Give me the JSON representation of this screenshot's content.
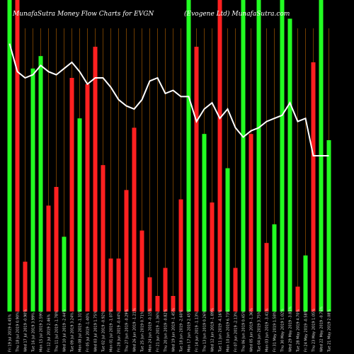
{
  "chart_data": {
    "type": "bar",
    "title_left": "MunafaSutra  Money Flow  Charts for EVGN",
    "title_right": "(Evogene   Ltd)  MunafaSutra.com",
    "colors": {
      "background": "#000000",
      "up": "#22ff22",
      "down": "#ff2020",
      "line": "#ffffff",
      "grid": "#8a4b00"
    },
    "ylim": [
      0,
      100
    ],
    "categories": [
      "Fri 19 Jul 2019 4.45%",
      "Thu 18 Jul 2019 0.90%",
      "Wed 17 Jul 2019 -0.90%",
      "Tue 16 Jul 2019 3.99%",
      "Mon 15 Jul 2019 2.59%",
      "Fri 12 Jul 2019 2.46%",
      "Thu 11 Jul 2019 -1.78%",
      "Wed 10 Jul 2019 -2.44%",
      "Tue 09 Jul 2019 3.24%",
      "Mon 08 Jul 2019 -1.31%",
      "Fri 05 Jul 2019 -1.40%",
      "Wed 03 Jul 2019 1.75%",
      "Tue 02 Jul 2019 -0.92%",
      "Mon 01 Jul 2019 -1.07%",
      "Fri 28 Jun 2019 -0.44%",
      "Thu 27 Jun 2019 -0.29%",
      "Wed 26 Jun 2019 -1.21%",
      "Tue 25 Jun 2019 0.71%",
      "Mon 24 Jun 2019 -0.15%",
      "Fri 21 Jun 2019 -1.36%",
      "Thu 20 Jun 2019 -0.82%",
      "Wed 19 Jun 2019 -1.45%",
      "Tue 18 Jun 2019 -2.60%",
      "Mon 17 Jun 2019 2.45%",
      "Fri 14 Jun 2019 -1.13%",
      "Thu 13 Jun 2019 0.26%",
      "Wed 12 Jun 2019 -1.89%",
      "Tue 11 Jun 2019 -4.16%",
      "Mon 10 Jun 2019 6.73%",
      "Fri 07 Jun 2019 -2.13%",
      "Thu 06 Jun 2019 0.45%",
      "Wed 05 Jun 2019 -1.36%",
      "Tue 04 Jun 2019 3.75%",
      "Mon 03 Jun 2019 -3.41%",
      "Fri 31 May 2019 1.58%",
      "Thu 30 May 2019 1.02%",
      "Wed 29 May 2019 -3.85%",
      "Tue 28 May 2019 4.70%",
      "Fri 24 May 2019 -0.58%",
      "Thu 23 May 2019 1.05%",
      "Wed 22 May 2019 -0.76%",
      "Tue 21 May 2019 2.08%"
    ],
    "series": [
      {
        "values": [
          100,
          100,
          16,
          78,
          82,
          34,
          40,
          24,
          75,
          62,
          73,
          85,
          47,
          17,
          17,
          39,
          59,
          26,
          11,
          5,
          14,
          5,
          36,
          100,
          85,
          57,
          35,
          100,
          46,
          14,
          100,
          57,
          100,
          22,
          28,
          100,
          94,
          8,
          18,
          80,
          100,
          55
        ]
      },
      {
        "values": [
          86,
          77,
          75,
          76,
          79,
          77,
          76,
          78,
          80,
          77,
          73,
          75,
          75,
          72,
          68,
          66,
          65,
          68,
          74,
          75,
          70,
          71,
          69,
          69,
          61,
          65,
          67,
          62,
          65,
          59,
          56,
          58,
          59,
          61,
          62,
          63,
          67,
          61,
          62,
          50,
          50,
          50
        ]
      }
    ],
    "directions": [
      "up",
      "down",
      "down",
      "up",
      "up",
      "down",
      "down",
      "up",
      "down",
      "up",
      "down",
      "down",
      "down",
      "down",
      "down",
      "down",
      "down",
      "down",
      "down",
      "down",
      "down",
      "down",
      "down",
      "up",
      "down",
      "up",
      "down",
      "down",
      "up",
      "down",
      "up",
      "down",
      "up",
      "down",
      "up",
      "up",
      "up",
      "down",
      "up",
      "down",
      "up",
      "up"
    ]
  }
}
